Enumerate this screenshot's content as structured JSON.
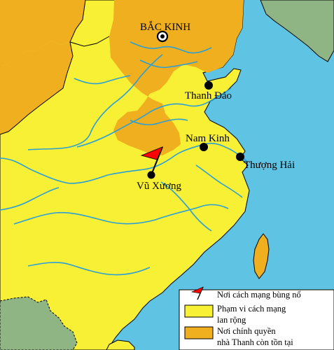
{
  "colors": {
    "sea": "#5fc3e4",
    "revolution_area": "#f7f035",
    "qing_area": "#efaf1e",
    "foreign_land": "#8fb585",
    "river": "#2b9fd6",
    "border": "#000000",
    "flag": "#ff0000"
  },
  "cities": [
    {
      "id": "bac-kinh",
      "name": "BẮC KINH",
      "marker": "capital"
    },
    {
      "id": "thanh-dao",
      "name": "Thanh Đảo",
      "marker": "dot"
    },
    {
      "id": "nam-kinh",
      "name": "Nam Kinh",
      "marker": "dot"
    },
    {
      "id": "thuong-hai",
      "name": "Thượng Hải",
      "marker": "dot"
    },
    {
      "id": "vu-xuong",
      "name": "Vũ Xương",
      "marker": "dot"
    }
  ],
  "legend": {
    "items": [
      {
        "icon": "red-flag-icon",
        "label_lines": [
          "Nơi cách mạng bùng nổ"
        ]
      },
      {
        "icon": "yellow-swatch",
        "label_lines": [
          "Phạm vi cách mạng",
          "lan rộng"
        ]
      },
      {
        "icon": "orange-swatch",
        "label_lines": [
          "Nơi chính quyền",
          "nhà Thanh còn tồn tại"
        ]
      }
    ]
  }
}
